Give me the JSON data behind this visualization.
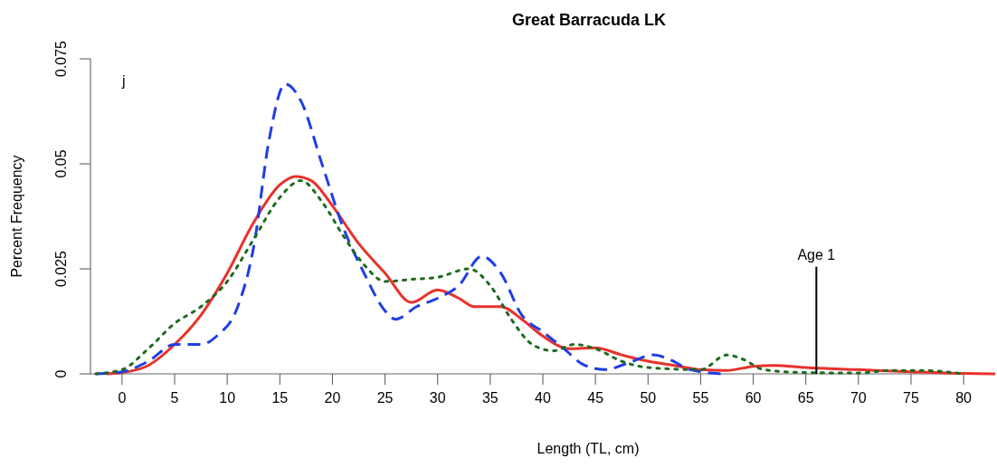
{
  "chart_data": {
    "type": "line",
    "title": "Great Barracuda LK",
    "xlabel": "Length (TL, cm)",
    "ylabel": "Percent Frequency",
    "annotations": [
      "j"
    ],
    "xlim": [
      -3,
      83
    ],
    "xticks": [
      0,
      5,
      10,
      15,
      20,
      25,
      30,
      35,
      40,
      45,
      50,
      55,
      60,
      65,
      70,
      75,
      80
    ],
    "ylim": [
      0,
      0.075
    ],
    "yticks": [
      0,
      0.025,
      0.05,
      0.075
    ],
    "grid": false,
    "ref_lines": [
      {
        "axis": "x",
        "value": 66,
        "label": "Age 1",
        "color": "#000000",
        "line_style": "solid"
      }
    ],
    "series": [
      {
        "color": "#e8322b",
        "line_style": "solid",
        "x": [
          -1.5,
          0,
          2.5,
          5,
          7.5,
          10,
          12.5,
          15,
          16.5,
          18,
          20,
          22.5,
          25,
          27.5,
          30,
          32,
          33.5,
          36,
          38,
          40,
          42.5,
          45,
          47.5,
          50,
          52.5,
          55,
          57.5,
          60,
          62,
          65,
          70,
          75,
          80,
          83
        ],
        "values": [
          0,
          0.0003,
          0.002,
          0.007,
          0.014,
          0.024,
          0.036,
          0.045,
          0.047,
          0.046,
          0.04,
          0.031,
          0.024,
          0.017,
          0.02,
          0.018,
          0.016,
          0.016,
          0.013,
          0.009,
          0.006,
          0.0062,
          0.0045,
          0.003,
          0.002,
          0.001,
          0.0008,
          0.0018,
          0.002,
          0.0015,
          0.001,
          0.0005,
          0.0001,
          0
        ]
      },
      {
        "color": "#1f3ee6",
        "line_style": "dashed",
        "x": [
          -2.5,
          0,
          2.5,
          5,
          7.5,
          9,
          11,
          12.5,
          14,
          15.5,
          17,
          19,
          21,
          23,
          25,
          26,
          28,
          30,
          32,
          34.2,
          36,
          38,
          40,
          42,
          44,
          46,
          48,
          50.5,
          52,
          54,
          57
        ],
        "values": [
          0,
          0.0005,
          0.003,
          0.007,
          0.007,
          0.009,
          0.016,
          0.03,
          0.056,
          0.069,
          0.065,
          0.05,
          0.035,
          0.024,
          0.015,
          0.013,
          0.016,
          0.018,
          0.021,
          0.028,
          0.024,
          0.014,
          0.01,
          0.006,
          0.002,
          0.001,
          0.0025,
          0.0045,
          0.0035,
          0.001,
          0
        ]
      },
      {
        "color": "#1e6b1e",
        "line_style": "dotted",
        "x": [
          -2.5,
          0,
          2.5,
          5,
          7.5,
          10,
          12.5,
          15,
          17,
          19,
          21,
          23,
          25,
          27.5,
          30,
          33,
          35,
          37,
          39,
          41,
          43,
          45,
          47.5,
          50,
          55,
          57.5,
          59,
          61,
          65,
          70,
          73,
          76,
          80
        ],
        "values": [
          0,
          0.001,
          0.006,
          0.012,
          0.016,
          0.022,
          0.032,
          0.042,
          0.046,
          0.041,
          0.033,
          0.026,
          0.022,
          0.0225,
          0.023,
          0.025,
          0.021,
          0.013,
          0.007,
          0.0055,
          0.007,
          0.006,
          0.003,
          0.0015,
          0.001,
          0.0045,
          0.0035,
          0.001,
          0.0003,
          0.0002,
          0.0008,
          0.0008,
          0
        ]
      }
    ]
  }
}
